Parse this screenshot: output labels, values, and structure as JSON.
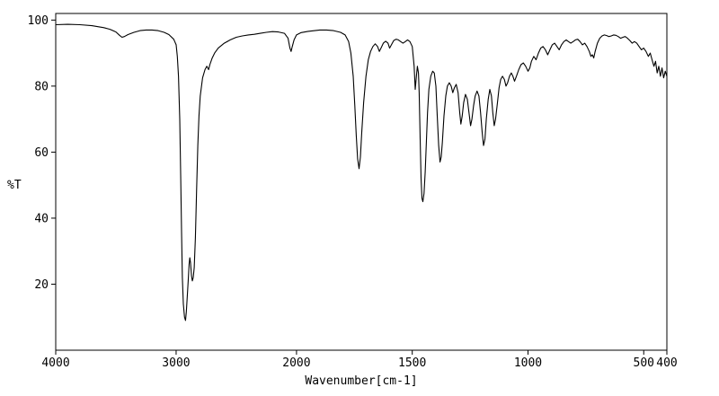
{
  "chart_data": {
    "type": "line",
    "title": "",
    "xlabel": "Wavenumber[cm-1]",
    "ylabel": "%T",
    "grid": false,
    "legend": false,
    "line_color": "#000000",
    "background_color": "#ffffff",
    "x_axis": {
      "min": 400,
      "max": 4000,
      "reversed": true,
      "scale_break_at": 2000,
      "ticks": [
        4000,
        3000,
        2000,
        1500,
        1000,
        500,
        400
      ],
      "segments": [
        {
          "from": 4000,
          "to": 2000,
          "width_frac": 0.394
        },
        {
          "from": 2000,
          "to": 400,
          "width_frac": 0.606
        }
      ]
    },
    "y_axis": {
      "min": 0,
      "max": 102,
      "ticks": [
        20,
        40,
        60,
        80,
        100
      ]
    },
    "points": [
      [
        4000,
        98.6
      ],
      [
        3900,
        98.7
      ],
      [
        3800,
        98.6
      ],
      [
        3700,
        98.3
      ],
      [
        3600,
        97.7
      ],
      [
        3550,
        97.2
      ],
      [
        3500,
        96.4
      ],
      [
        3470,
        95.4
      ],
      [
        3450,
        94.8
      ],
      [
        3430,
        95.0
      ],
      [
        3400,
        95.6
      ],
      [
        3350,
        96.3
      ],
      [
        3300,
        96.8
      ],
      [
        3250,
        97.0
      ],
      [
        3200,
        97.0
      ],
      [
        3150,
        96.8
      ],
      [
        3100,
        96.3
      ],
      [
        3060,
        95.6
      ],
      [
        3020,
        94.2
      ],
      [
        3000,
        92.5
      ],
      [
        2990,
        89.0
      ],
      [
        2980,
        83.0
      ],
      [
        2970,
        70.0
      ],
      [
        2962,
        52.0
      ],
      [
        2955,
        36.0
      ],
      [
        2948,
        22.0
      ],
      [
        2940,
        14.0
      ],
      [
        2930,
        10.0
      ],
      [
        2922,
        9.0
      ],
      [
        2915,
        11.5
      ],
      [
        2908,
        16.0
      ],
      [
        2900,
        21.0
      ],
      [
        2892,
        26.0
      ],
      [
        2886,
        28.0
      ],
      [
        2880,
        26.5
      ],
      [
        2872,
        22.5
      ],
      [
        2865,
        21.0
      ],
      [
        2858,
        22.0
      ],
      [
        2850,
        25.0
      ],
      [
        2840,
        34.0
      ],
      [
        2830,
        48.0
      ],
      [
        2820,
        62.0
      ],
      [
        2810,
        71.0
      ],
      [
        2800,
        77.0
      ],
      [
        2780,
        82.5
      ],
      [
        2760,
        85.0
      ],
      [
        2745,
        86.0
      ],
      [
        2730,
        85.0
      ],
      [
        2720,
        86.5
      ],
      [
        2700,
        88.5
      ],
      [
        2680,
        90.0
      ],
      [
        2650,
        91.5
      ],
      [
        2600,
        93.0
      ],
      [
        2550,
        94.0
      ],
      [
        2500,
        94.8
      ],
      [
        2450,
        95.2
      ],
      [
        2400,
        95.5
      ],
      [
        2350,
        95.7
      ],
      [
        2300,
        96.0
      ],
      [
        2250,
        96.3
      ],
      [
        2200,
        96.5
      ],
      [
        2150,
        96.4
      ],
      [
        2100,
        96.0
      ],
      [
        2070,
        94.5
      ],
      [
        2055,
        91.5
      ],
      [
        2045,
        90.5
      ],
      [
        2035,
        92.0
      ],
      [
        2020,
        94.0
      ],
      [
        2000,
        95.5
      ],
      [
        1980,
        96.2
      ],
      [
        1950,
        96.6
      ],
      [
        1900,
        97.0
      ],
      [
        1870,
        97.0
      ],
      [
        1840,
        96.8
      ],
      [
        1810,
        96.3
      ],
      [
        1790,
        95.5
      ],
      [
        1775,
        93.5
      ],
      [
        1765,
        90.0
      ],
      [
        1755,
        83.0
      ],
      [
        1748,
        74.0
      ],
      [
        1742,
        65.0
      ],
      [
        1736,
        58.0
      ],
      [
        1730,
        55.0
      ],
      [
        1724,
        58.5
      ],
      [
        1718,
        66.0
      ],
      [
        1710,
        75.0
      ],
      [
        1700,
        83.0
      ],
      [
        1690,
        88.0
      ],
      [
        1680,
        90.5
      ],
      [
        1670,
        92.0
      ],
      [
        1660,
        92.8
      ],
      [
        1650,
        92.0
      ],
      [
        1642,
        90.5
      ],
      [
        1635,
        91.5
      ],
      [
        1625,
        93.0
      ],
      [
        1615,
        93.6
      ],
      [
        1605,
        93.0
      ],
      [
        1598,
        91.5
      ],
      [
        1590,
        92.5
      ],
      [
        1580,
        93.8
      ],
      [
        1570,
        94.2
      ],
      [
        1560,
        94.0
      ],
      [
        1550,
        93.5
      ],
      [
        1540,
        93.0
      ],
      [
        1530,
        93.5
      ],
      [
        1520,
        94.0
      ],
      [
        1510,
        93.5
      ],
      [
        1500,
        92.0
      ],
      [
        1492,
        86.0
      ],
      [
        1487,
        79.0
      ],
      [
        1482,
        83.0
      ],
      [
        1478,
        86.0
      ],
      [
        1473,
        84.0
      ],
      [
        1470,
        78.0
      ],
      [
        1466,
        64.0
      ],
      [
        1462,
        52.0
      ],
      [
        1458,
        46.0
      ],
      [
        1454,
        45.0
      ],
      [
        1449,
        47.5
      ],
      [
        1444,
        54.0
      ],
      [
        1439,
        63.0
      ],
      [
        1434,
        72.0
      ],
      [
        1428,
        79.0
      ],
      [
        1420,
        83.0
      ],
      [
        1412,
        84.5
      ],
      [
        1405,
        84.0
      ],
      [
        1398,
        80.0
      ],
      [
        1392,
        71.0
      ],
      [
        1386,
        62.0
      ],
      [
        1380,
        57.0
      ],
      [
        1375,
        58.5
      ],
      [
        1370,
        63.0
      ],
      [
        1363,
        71.0
      ],
      [
        1355,
        77.0
      ],
      [
        1348,
        80.0
      ],
      [
        1340,
        81.0
      ],
      [
        1332,
        80.0
      ],
      [
        1325,
        78.0
      ],
      [
        1318,
        79.5
      ],
      [
        1310,
        80.5
      ],
      [
        1302,
        78.0
      ],
      [
        1295,
        72.0
      ],
      [
        1290,
        68.5
      ],
      [
        1284,
        71.0
      ],
      [
        1278,
        75.0
      ],
      [
        1270,
        77.5
      ],
      [
        1262,
        76.0
      ],
      [
        1255,
        72.0
      ],
      [
        1248,
        68.0
      ],
      [
        1242,
        70.0
      ],
      [
        1235,
        74.0
      ],
      [
        1228,
        77.0
      ],
      [
        1220,
        78.5
      ],
      [
        1212,
        77.0
      ],
      [
        1205,
        72.0
      ],
      [
        1198,
        66.0
      ],
      [
        1192,
        62.0
      ],
      [
        1186,
        64.0
      ],
      [
        1180,
        70.0
      ],
      [
        1172,
        76.0
      ],
      [
        1165,
        79.0
      ],
      [
        1158,
        77.0
      ],
      [
        1152,
        72.0
      ],
      [
        1146,
        68.0
      ],
      [
        1140,
        70.0
      ],
      [
        1132,
        75.0
      ],
      [
        1125,
        79.5
      ],
      [
        1118,
        82.0
      ],
      [
        1110,
        83.0
      ],
      [
        1102,
        82.0
      ],
      [
        1095,
        80.0
      ],
      [
        1088,
        81.0
      ],
      [
        1080,
        83.0
      ],
      [
        1072,
        84.0
      ],
      [
        1065,
        83.0
      ],
      [
        1058,
        81.5
      ],
      [
        1050,
        83.0
      ],
      [
        1040,
        85.0
      ],
      [
        1030,
        86.5
      ],
      [
        1020,
        87.0
      ],
      [
        1010,
        86.0
      ],
      [
        1000,
        84.5
      ],
      [
        992,
        85.5
      ],
      [
        985,
        87.5
      ],
      [
        975,
        89.0
      ],
      [
        965,
        88.0
      ],
      [
        955,
        90.0
      ],
      [
        945,
        91.5
      ],
      [
        935,
        92.0
      ],
      [
        925,
        91.0
      ],
      [
        915,
        89.5
      ],
      [
        905,
        91.0
      ],
      [
        895,
        92.5
      ],
      [
        885,
        93.0
      ],
      [
        875,
        92.0
      ],
      [
        865,
        91.0
      ],
      [
        855,
        92.5
      ],
      [
        845,
        93.5
      ],
      [
        835,
        94.0
      ],
      [
        825,
        93.5
      ],
      [
        815,
        93.0
      ],
      [
        805,
        93.5
      ],
      [
        795,
        94.0
      ],
      [
        785,
        94.2
      ],
      [
        775,
        93.5
      ],
      [
        765,
        92.5
      ],
      [
        755,
        93.0
      ],
      [
        745,
        92.0
      ],
      [
        735,
        90.5
      ],
      [
        728,
        89.0
      ],
      [
        722,
        89.5
      ],
      [
        716,
        88.5
      ],
      [
        710,
        90.5
      ],
      [
        700,
        93.0
      ],
      [
        690,
        94.5
      ],
      [
        680,
        95.2
      ],
      [
        670,
        95.5
      ],
      [
        660,
        95.3
      ],
      [
        650,
        95.0
      ],
      [
        640,
        95.2
      ],
      [
        630,
        95.5
      ],
      [
        620,
        95.4
      ],
      [
        610,
        95.0
      ],
      [
        600,
        94.5
      ],
      [
        590,
        94.8
      ],
      [
        580,
        95.0
      ],
      [
        570,
        94.5
      ],
      [
        560,
        93.8
      ],
      [
        550,
        93.0
      ],
      [
        540,
        93.5
      ],
      [
        530,
        93.0
      ],
      [
        520,
        92.0
      ],
      [
        510,
        91.0
      ],
      [
        500,
        91.5
      ],
      [
        490,
        90.5
      ],
      [
        480,
        89.0
      ],
      [
        472,
        90.0
      ],
      [
        464,
        88.0
      ],
      [
        456,
        86.0
      ],
      [
        449,
        87.5
      ],
      [
        442,
        84.0
      ],
      [
        435,
        86.0
      ],
      [
        428,
        83.0
      ],
      [
        421,
        85.5
      ],
      [
        414,
        82.5
      ],
      [
        407,
        84.5
      ],
      [
        400,
        83.0
      ]
    ]
  }
}
